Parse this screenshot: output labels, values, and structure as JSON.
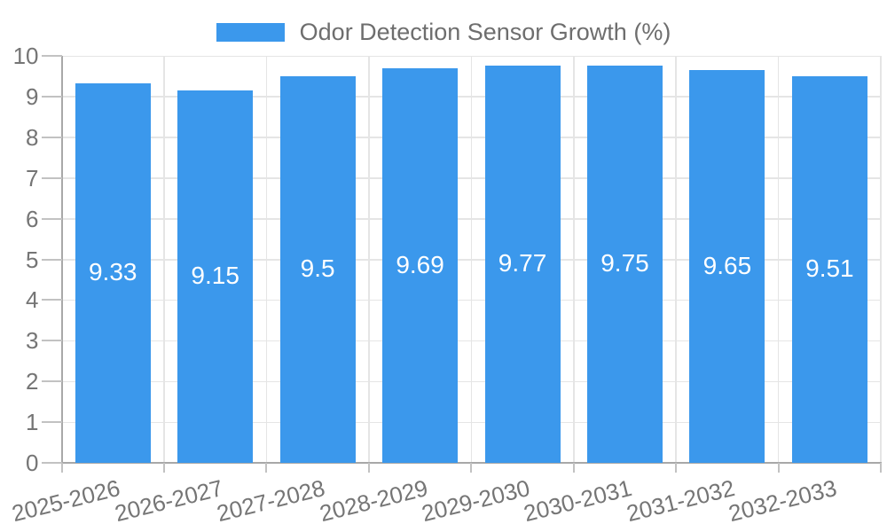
{
  "colors": {
    "bar": "#3b98ec",
    "grid": "#e5e5e5",
    "axis": "#a8a8a8",
    "tick": "#c2c2c2",
    "tick_label_text": "#757575",
    "legend_text": "#6e6e6e",
    "value_label_text": "#ffffff",
    "background": "#ffffff"
  },
  "legend": {
    "label": "Odor Detection Sensor Growth (%)"
  },
  "chart_data": {
    "type": "bar",
    "title": "",
    "legend_entries": [
      "Odor Detection Sensor Growth (%)"
    ],
    "legend_position": "top-center",
    "categories": [
      "2025-2026",
      "2026-2027",
      "2027-2028",
      "2028-2029",
      "2029-2030",
      "2030-2031",
      "2031-2032",
      "2032-2033"
    ],
    "values": [
      9.33,
      9.15,
      9.5,
      9.69,
      9.77,
      9.75,
      9.65,
      9.51
    ],
    "series": [
      {
        "name": "Odor Detection Sensor Growth (%)",
        "values": [
          9.33,
          9.15,
          9.5,
          9.69,
          9.77,
          9.75,
          9.65,
          9.51
        ]
      }
    ],
    "xlabel": "",
    "ylabel": "",
    "ylim": [
      0,
      10
    ],
    "ytick_step": 1,
    "yticks": [
      0,
      1,
      2,
      3,
      4,
      5,
      6,
      7,
      8,
      9,
      10
    ],
    "grid": true,
    "value_labels": "inside-center",
    "xtick_rotation_deg": -14
  }
}
